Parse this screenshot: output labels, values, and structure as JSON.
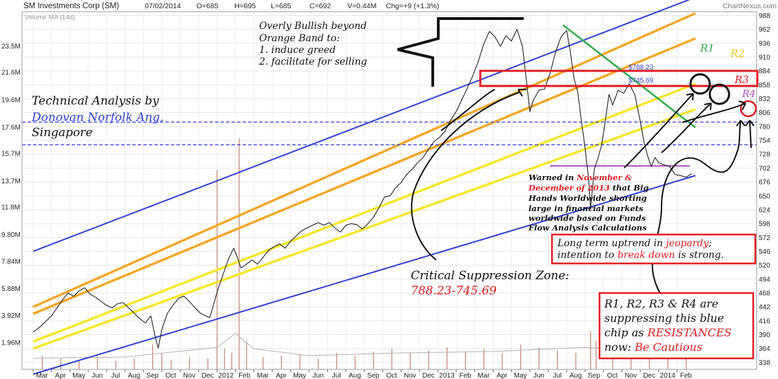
{
  "header": {
    "title": "SM Investments Corp (SM)",
    "date": "07/02/2014",
    "open": "O=685",
    "high": "H=695",
    "low": "L=685",
    "close": "C=692",
    "volume": "V=0.44M",
    "change": "Chg=+9 (+1.3%)",
    "brand": "ChartNexus.com"
  },
  "volume_label": "Volume MA (14d)",
  "chart_data": {
    "type": "line",
    "price_axis": {
      "ticks": [
        988,
        962,
        936,
        910,
        884,
        858,
        832,
        806,
        780,
        754,
        728,
        702,
        676,
        650,
        624,
        598,
        572,
        546,
        520,
        494,
        468,
        442,
        416,
        390,
        364,
        338
      ],
      "range": [
        325,
        995
      ]
    },
    "volume_axis": {
      "ticks": [
        "23.5M",
        "21.6M",
        "19.6M",
        "17.6M",
        "15.7M",
        "13.7M",
        "11.8M",
        "9.80M",
        "7.84M",
        "5.88M",
        "3.92M",
        "1.96M"
      ],
      "range_millions": [
        0,
        26
      ]
    },
    "x_axis": {
      "labels": [
        "Mar",
        "Apr",
        "May",
        "Jun",
        "Jul",
        "Aug",
        "Sep",
        "Oct",
        "Nov",
        "Dec",
        "2012",
        "Feb",
        "Mar",
        "Apr",
        "May",
        "Jun",
        "Jul",
        "Aug",
        "Sep",
        "Oct",
        "Nov",
        "Dec",
        "2013",
        "Feb",
        "Mar",
        "Apr",
        "May",
        "Jun",
        "Jul",
        "Aug",
        "Sep",
        "Oct",
        "Nov",
        "Dec",
        "2014",
        "Feb"
      ],
      "range_months": [
        0,
        36
      ]
    },
    "price_series": {
      "name": "",
      "points": [
        [
          0.0,
          395
        ],
        [
          0.3,
          402
        ],
        [
          0.6,
          412
        ],
        [
          1.0,
          425
        ],
        [
          1.3,
          440
        ],
        [
          1.6,
          455
        ],
        [
          1.9,
          468
        ],
        [
          2.2,
          462
        ],
        [
          2.5,
          472
        ],
        [
          2.8,
          478
        ],
        [
          3.1,
          466
        ],
        [
          3.4,
          460
        ],
        [
          3.7,
          452
        ],
        [
          4.0,
          445
        ],
        [
          4.3,
          440
        ],
        [
          4.6,
          448
        ],
        [
          4.9,
          450
        ],
        [
          5.2,
          440
        ],
        [
          5.5,
          430
        ],
        [
          5.8,
          420
        ],
        [
          6.1,
          412
        ],
        [
          6.4,
          425
        ],
        [
          6.6,
          392
        ],
        [
          6.8,
          365
        ],
        [
          7.0,
          400
        ],
        [
          7.3,
          430
        ],
        [
          7.6,
          445
        ],
        [
          7.9,
          458
        ],
        [
          8.2,
          462
        ],
        [
          8.5,
          452
        ],
        [
          8.8,
          440
        ],
        [
          9.1,
          430
        ],
        [
          9.4,
          425
        ],
        [
          9.6,
          422
        ],
        [
          9.8,
          445
        ],
        [
          10.0,
          470
        ],
        [
          10.3,
          500
        ],
        [
          10.6,
          530
        ],
        [
          10.9,
          552
        ],
        [
          11.1,
          535
        ],
        [
          11.3,
          515
        ],
        [
          11.6,
          522
        ],
        [
          11.9,
          530
        ],
        [
          12.2,
          522
        ],
        [
          12.5,
          535
        ],
        [
          12.8,
          548
        ],
        [
          13.1,
          555
        ],
        [
          13.4,
          560
        ],
        [
          13.7,
          552
        ],
        [
          14.0,
          565
        ],
        [
          14.3,
          575
        ],
        [
          14.6,
          585
        ],
        [
          14.9,
          590
        ],
        [
          15.2,
          595
        ],
        [
          15.5,
          600
        ],
        [
          15.8,
          595
        ],
        [
          16.1,
          600
        ],
        [
          16.4,
          590
        ],
        [
          16.7,
          582
        ],
        [
          17.0,
          595
        ],
        [
          17.3,
          598
        ],
        [
          17.6,
          596
        ],
        [
          17.9,
          588
        ],
        [
          18.2,
          598
        ],
        [
          18.5,
          610
        ],
        [
          18.8,
          628
        ],
        [
          19.1,
          648
        ],
        [
          19.4,
          650
        ],
        [
          19.7,
          665
        ],
        [
          20.0,
          675
        ],
        [
          20.3,
          690
        ],
        [
          20.6,
          700
        ],
        [
          20.9,
          712
        ],
        [
          21.2,
          722
        ],
        [
          21.5,
          738
        ],
        [
          21.8,
          752
        ],
        [
          22.1,
          760
        ],
        [
          22.4,
          772
        ],
        [
          22.7,
          792
        ],
        [
          23.0,
          808
        ],
        [
          23.3,
          830
        ],
        [
          23.6,
          852
        ],
        [
          23.9,
          875
        ],
        [
          24.2,
          902
        ],
        [
          24.5,
          935
        ],
        [
          24.8,
          958
        ],
        [
          25.1,
          948
        ],
        [
          25.4,
          930
        ],
        [
          25.7,
          950
        ],
        [
          26.0,
          940
        ],
        [
          26.3,
          962
        ],
        [
          26.6,
          930
        ],
        [
          26.8,
          870
        ],
        [
          27.0,
          808
        ],
        [
          27.2,
          830
        ],
        [
          27.5,
          848
        ],
        [
          27.8,
          850
        ],
        [
          28.1,
          880
        ],
        [
          28.4,
          920
        ],
        [
          28.7,
          948
        ],
        [
          29.0,
          960
        ],
        [
          29.2,
          920
        ],
        [
          29.4,
          870
        ],
        [
          29.6,
          845
        ],
        [
          29.8,
          790
        ],
        [
          30.0,
          740
        ],
        [
          30.2,
          680
        ],
        [
          30.3,
          625
        ],
        [
          30.5,
          700
        ],
        [
          30.7,
          720
        ],
        [
          30.9,
          745
        ],
        [
          31.1,
          790
        ],
        [
          31.3,
          840
        ],
        [
          31.5,
          820
        ],
        [
          31.8,
          848
        ],
        [
          32.1,
          842
        ],
        [
          32.4,
          860
        ],
        [
          32.7,
          840
        ],
        [
          33.0,
          790
        ],
        [
          33.2,
          752
        ],
        [
          33.4,
          725
        ],
        [
          33.6,
          705
        ],
        [
          33.8,
          722
        ],
        [
          34.0,
          712
        ],
        [
          34.3,
          708
        ],
        [
          34.6,
          705
        ],
        [
          34.9,
          690
        ],
        [
          35.2,
          688
        ],
        [
          35.5,
          685
        ],
        [
          35.8,
          692
        ]
      ]
    },
    "volume_bars_millions": [
      [
        0.5,
        1.0
      ],
      [
        1.5,
        0.8
      ],
      [
        2.5,
        0.7
      ],
      [
        3.5,
        0.9
      ],
      [
        4.5,
        0.6
      ],
      [
        5.5,
        0.8
      ],
      [
        6.5,
        1.8
      ],
      [
        7.0,
        1.2
      ],
      [
        7.5,
        0.7
      ],
      [
        8.5,
        0.9
      ],
      [
        9.5,
        0.8
      ],
      [
        10.0,
        14.5
      ],
      [
        10.4,
        1.5
      ],
      [
        10.8,
        1.2
      ],
      [
        11.2,
        16.8
      ],
      [
        11.6,
        2.0
      ],
      [
        12.5,
        0.9
      ],
      [
        13.5,
        1.0
      ],
      [
        14.5,
        1.1
      ],
      [
        15.5,
        0.8
      ],
      [
        16.5,
        1.2
      ],
      [
        17.5,
        1.0
      ],
      [
        18.5,
        1.3
      ],
      [
        19.5,
        1.5
      ],
      [
        20.5,
        1.2
      ],
      [
        21.5,
        1.4
      ],
      [
        22.5,
        1.6
      ],
      [
        23.5,
        1.3
      ],
      [
        24.5,
        1.5
      ],
      [
        25.5,
        1.2
      ],
      [
        26.5,
        1.8
      ],
      [
        27.5,
        1.6
      ],
      [
        28.5,
        1.4
      ],
      [
        29.5,
        1.2
      ],
      [
        30.3,
        2.8
      ],
      [
        30.6,
        2.1
      ],
      [
        31.5,
        1.3
      ],
      [
        32.5,
        1.7
      ],
      [
        33.5,
        1.2
      ],
      [
        34.5,
        1.5
      ],
      [
        35.5,
        1.1
      ]
    ],
    "volume_ma_millions": [
      [
        0,
        0.8
      ],
      [
        5,
        0.9
      ],
      [
        10,
        1.6
      ],
      [
        11,
        2.6
      ],
      [
        12,
        1.5
      ],
      [
        15,
        1.0
      ],
      [
        20,
        1.2
      ],
      [
        25,
        1.3
      ],
      [
        30,
        1.6
      ],
      [
        33,
        1.4
      ],
      [
        36,
        1.2
      ]
    ],
    "trendlines": {
      "blue_upper": [
        [
          0,
          546
        ],
        [
          36,
          1022
        ]
      ],
      "blue_lower": [
        [
          0,
          316
        ],
        [
          36,
          688
        ]
      ],
      "orange_1": [
        [
          0,
          442
        ],
        [
          36,
          992
        ]
      ],
      "orange_2": [
        [
          0,
          429
        ],
        [
          36,
          945
        ]
      ],
      "yellow_1": [
        [
          0,
          377
        ],
        [
          36,
          860
        ]
      ],
      "yellow_2": [
        [
          0,
          364
        ],
        [
          36,
          812
        ]
      ],
      "green_r1": [
        [
          28.8,
          970
        ],
        [
          36,
          778
        ]
      ]
    },
    "horizontal_lines": {
      "dashed_upper": 788.23,
      "dashed_lower": 745.69,
      "purple_r4": 706
    },
    "level_labels": {
      "upper": "$788.23",
      "lower": "$745.69"
    },
    "resistance_labels": [
      "R1",
      "R2",
      "R3",
      "R4"
    ]
  },
  "annotations": {
    "bullish_note": [
      "Overly Bullish beyond",
      "Orange Band to:",
      "1.  induce greed",
      "2.  facilitate for selling"
    ],
    "author": {
      "line1": "Technical Analysis by",
      "name": "Donovan Norfolk Ang,",
      "line3": "Singapore"
    },
    "warning": {
      "l1_a": "Warned in ",
      "l1_b": "November &",
      "l2_a": "December of 2013",
      "l2_b": " that Big",
      "l3": "Hands Worldwide shorting",
      "l4": "large in financial markets",
      "l5": "worldwide based on Funds",
      "l6": "Flow Analysis Calculations"
    },
    "suppression": {
      "title": "Critical  Suppression Zone:",
      "value": "788.23-745.69"
    },
    "uptrend_box": {
      "l1_a": "Long term uptrend in ",
      "l1_b": "jeopardy",
      "l1_c": ";",
      "l2_a": "intention to ",
      "l2_b": "break down",
      "l2_c": " is strong."
    },
    "resistance_box": {
      "l1": "R1, R2, R3 & R4 are",
      "l2": "suppressing this blue",
      "l3_a": "chip as ",
      "l3_b": "RESISTANCES",
      "l4_a": "now: ",
      "l4_b": "Be Cautious"
    }
  },
  "colors": {
    "blue_line": "#2f3fd6",
    "orange_line": "#f2a82a",
    "yellow_line": "#f5e62a",
    "green_line": "#2fa84a",
    "purple_line": "#a84bc0",
    "red_box": "#e21b22",
    "price_line": "#222222",
    "volume_bar": "#c48a7a"
  }
}
